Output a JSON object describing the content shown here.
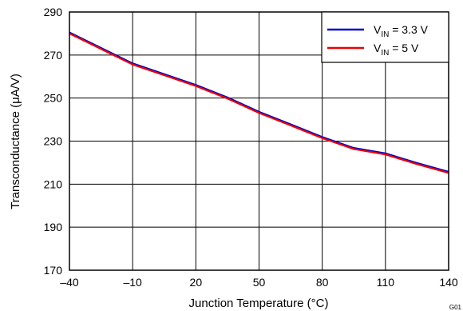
{
  "chart_data": {
    "type": "line",
    "xlabel": "Junction Temperature (°C)",
    "ylabel": "Transconductance (μA/V)",
    "xlim": [
      -40,
      140
    ],
    "ylim": [
      170,
      290
    ],
    "x_ticks": [
      -40,
      -10,
      20,
      50,
      80,
      110,
      140
    ],
    "x_tick_labels": [
      "–40",
      "–10",
      "20",
      "50",
      "80",
      "110",
      "140"
    ],
    "y_ticks": [
      170,
      190,
      210,
      230,
      250,
      270,
      290
    ],
    "y_tick_labels": [
      "170",
      "190",
      "210",
      "230",
      "250",
      "270",
      "290"
    ],
    "grid": true,
    "legend_position": "top-right",
    "series": [
      {
        "name_main": "V",
        "name_sub": "IN",
        "name_suffix": " = 3.3 V",
        "color": "#0000cc",
        "x": [
          -40,
          -25,
          -10,
          5,
          20,
          35,
          50,
          65,
          80,
          95,
          110,
          125,
          140
        ],
        "y": [
          280.5,
          273.3,
          266.1,
          261.1,
          256.1,
          250.3,
          243.6,
          237.8,
          231.9,
          226.8,
          224.3,
          219.8,
          215.7
        ]
      },
      {
        "name_main": "V",
        "name_sub": "IN",
        "name_suffix": " = 5 V",
        "color": "#ee0000",
        "x": [
          -40,
          -25,
          -10,
          5,
          20,
          35,
          50,
          65,
          80,
          95,
          110,
          125,
          140
        ],
        "y": [
          280.0,
          272.8,
          265.6,
          260.6,
          255.6,
          249.8,
          243.1,
          237.3,
          231.4,
          226.3,
          223.8,
          219.3,
          215.2
        ]
      }
    ],
    "figure_id": "G01"
  }
}
